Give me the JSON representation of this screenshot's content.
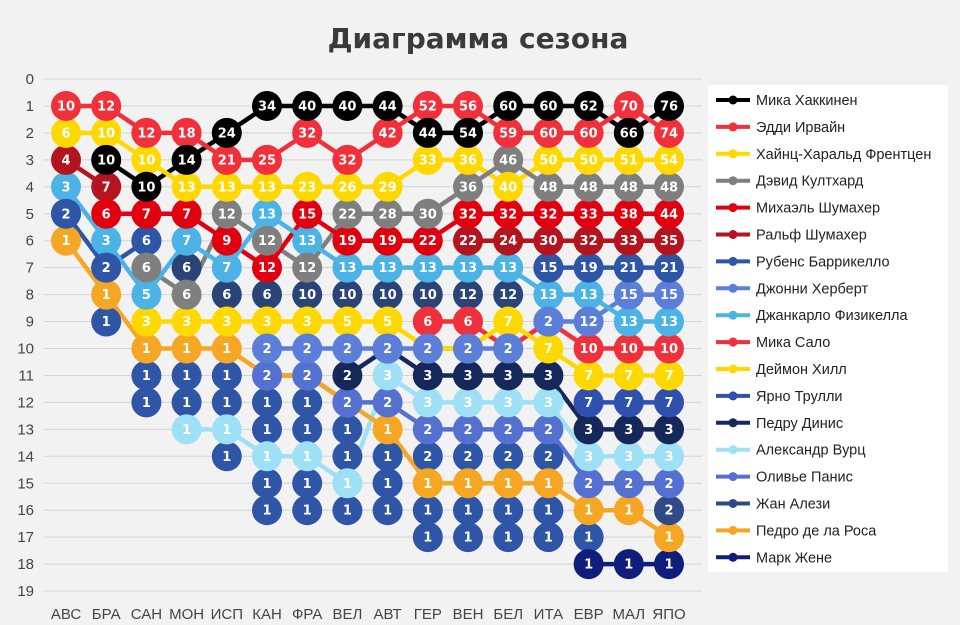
{
  "chart_data": {
    "type": "line",
    "title": "Диаграмма сезона",
    "xlabel": "",
    "ylabel": "",
    "ylim": [
      19,
      0
    ],
    "y_ticks": [
      0,
      1,
      2,
      3,
      4,
      5,
      6,
      7,
      8,
      9,
      10,
      11,
      12,
      13,
      14,
      15,
      16,
      17,
      18,
      19
    ],
    "y_reversed": true,
    "grid": true,
    "legend_position": "right",
    "categories": [
      "АВС",
      "БРА",
      "САН",
      "МОН",
      "ИСП",
      "КАН",
      "ФРА",
      "ВЕЛ",
      "АВТ",
      "ГЕР",
      "ВЕН",
      "БЕЛ",
      "ИТА",
      "ЕВР",
      "МАЛ",
      "ЯПО"
    ],
    "series": [
      {
        "name": "Мика Хаккинен",
        "color": "#000000",
        "positions": [
          null,
          3,
          4,
          3,
          2,
          1,
          1,
          1,
          1,
          2,
          2,
          1,
          1,
          1,
          2,
          1
        ],
        "points": [
          null,
          10,
          10,
          14,
          24,
          34,
          40,
          40,
          44,
          44,
          54,
          60,
          60,
          62,
          66,
          76
        ]
      },
      {
        "name": "Эдди Ирвайн",
        "color": "#f0303a",
        "positions": [
          1,
          1,
          2,
          2,
          3,
          3,
          2,
          3,
          2,
          1,
          1,
          2,
          2,
          2,
          1,
          2
        ],
        "points": [
          10,
          12,
          12,
          18,
          21,
          25,
          32,
          32,
          42,
          52,
          56,
          59,
          60,
          60,
          70,
          74
        ]
      },
      {
        "name": "Хайнц-Харальд Френтцен",
        "color": "#ffd800",
        "positions": [
          2,
          2,
          3,
          4,
          4,
          4,
          4,
          4,
          4,
          3,
          3,
          4,
          3,
          3,
          3,
          3
        ],
        "points": [
          6,
          10,
          10,
          13,
          13,
          13,
          23,
          26,
          29,
          33,
          36,
          40,
          50,
          50,
          51,
          54
        ]
      },
      {
        "name": "Дэвид Култхард",
        "color": "#7f7f7f",
        "positions": [
          null,
          null,
          7,
          8,
          5,
          6,
          7,
          5,
          5,
          5,
          4,
          3,
          4,
          4,
          4,
          4
        ],
        "points": [
          null,
          null,
          6,
          6,
          12,
          12,
          12,
          22,
          28,
          30,
          36,
          46,
          48,
          48,
          48,
          48
        ]
      },
      {
        "name": "Михаэль Шумахер",
        "color": "#e00010",
        "positions": [
          null,
          5,
          5,
          5,
          6,
          7,
          5,
          6,
          6,
          6,
          5,
          5,
          5,
          5,
          5,
          5
        ],
        "points": [
          null,
          6,
          7,
          7,
          9,
          12,
          15,
          19,
          19,
          22,
          32,
          32,
          32,
          33,
          38,
          44
        ]
      },
      {
        "name": "Ральф Шумахер",
        "color": "#b4141e",
        "positions": [
          3,
          4,
          null,
          null,
          null,
          null,
          null,
          null,
          null,
          null,
          6,
          6,
          6,
          6,
          6,
          6
        ],
        "points": [
          4,
          7,
          null,
          null,
          null,
          null,
          null,
          null,
          null,
          null,
          22,
          24,
          30,
          32,
          33,
          35
        ]
      },
      {
        "name": "Рубенс Баррикелло",
        "color": "#2f55a6",
        "positions": [
          5,
          7,
          6,
          null,
          null,
          null,
          null,
          null,
          null,
          null,
          null,
          null,
          7,
          7,
          7,
          7
        ],
        "points": [
          2,
          2,
          6,
          null,
          null,
          null,
          null,
          null,
          null,
          null,
          null,
          null,
          15,
          19,
          21,
          21
        ]
      },
      {
        "name": "Джонни Херберт",
        "color": "#5b7fd9",
        "positions": [
          null,
          null,
          null,
          null,
          null,
          10,
          10,
          10,
          10,
          10,
          10,
          10,
          9,
          9,
          8,
          8
        ],
        "points": [
          null,
          null,
          null,
          null,
          null,
          2,
          2,
          2,
          2,
          2,
          2,
          2,
          2,
          12,
          15,
          15
        ]
      },
      {
        "name": "Джанкарло Физикелла",
        "color": "#4cb3e6",
        "positions": [
          4,
          6,
          8,
          6,
          7,
          5,
          6,
          7,
          7,
          7,
          7,
          7,
          8,
          8,
          9,
          9
        ],
        "points": [
          3,
          3,
          5,
          7,
          7,
          13,
          13,
          13,
          13,
          13,
          13,
          13,
          13,
          13,
          13,
          13
        ]
      },
      {
        "name": "Мика Сало",
        "color": "#f0303a",
        "positions": [
          null,
          null,
          null,
          null,
          null,
          null,
          null,
          null,
          null,
          9,
          9,
          10,
          9,
          10,
          10,
          10
        ],
        "points": [
          null,
          null,
          null,
          null,
          null,
          null,
          null,
          null,
          null,
          6,
          6,
          6,
          10,
          10,
          10,
          10
        ]
      },
      {
        "name": "Деймон Хилл",
        "color": "#ffd800",
        "positions": [
          null,
          null,
          9,
          9,
          9,
          9,
          9,
          9,
          9,
          10,
          10,
          9,
          10,
          11,
          11,
          11
        ],
        "points": [
          null,
          null,
          3,
          3,
          3,
          3,
          3,
          5,
          5,
          5,
          6,
          7,
          7,
          7,
          7,
          7
        ]
      },
      {
        "name": "Ярно Трулли",
        "color": "#3050b0",
        "positions": [
          null,
          null,
          null,
          null,
          null,
          null,
          null,
          null,
          null,
          null,
          null,
          null,
          null,
          12,
          12,
          12
        ],
        "points": [
          null,
          null,
          null,
          null,
          null,
          null,
          null,
          null,
          null,
          null,
          null,
          null,
          null,
          7,
          7,
          7
        ]
      },
      {
        "name": "Педру Динис",
        "color": "#16285a",
        "positions": [
          null,
          null,
          null,
          null,
          null,
          null,
          null,
          11,
          10,
          11,
          11,
          11,
          11,
          13,
          13,
          13
        ],
        "points": [
          null,
          null,
          null,
          null,
          null,
          null,
          null,
          2,
          3,
          3,
          3,
          3,
          3,
          3,
          3,
          3
        ]
      },
      {
        "name": "Александр Вурц",
        "color": "#9ee0f5",
        "positions": [
          null,
          null,
          null,
          13,
          13,
          14,
          14,
          15,
          11,
          12,
          12,
          12,
          12,
          14,
          14,
          14
        ],
        "points": [
          null,
          null,
          null,
          1,
          1,
          1,
          1,
          1,
          3,
          3,
          3,
          3,
          3,
          3,
          3,
          3
        ]
      },
      {
        "name": "Оливье Панис",
        "color": "#5470d0",
        "positions": [
          null,
          null,
          null,
          null,
          null,
          11,
          11,
          12,
          12,
          13,
          13,
          13,
          13,
          15,
          15,
          15
        ],
        "points": [
          null,
          null,
          null,
          null,
          null,
          2,
          2,
          2,
          2,
          2,
          2,
          2,
          2,
          2,
          2,
          2
        ]
      },
      {
        "name": "Жан Алези",
        "color": "#2f4a86",
        "positions": [
          null,
          null,
          null,
          null,
          null,
          null,
          null,
          null,
          null,
          null,
          null,
          null,
          null,
          null,
          null,
          16
        ],
        "points": [
          null,
          null,
          null,
          null,
          null,
          null,
          null,
          null,
          null,
          null,
          null,
          null,
          null,
          null,
          null,
          2
        ]
      },
      {
        "name": "Педро де ла Роса",
        "color": "#f5a623",
        "positions": [
          6,
          8,
          10,
          10,
          10,
          11,
          11,
          12,
          13,
          15,
          15,
          15,
          15,
          16,
          16,
          17
        ],
        "points": [
          1,
          1,
          1,
          1,
          1,
          1,
          1,
          1,
          1,
          1,
          1,
          1,
          1,
          1,
          1,
          1
        ]
      },
      {
        "name": "Марк Жене",
        "color": "#0f1e7a",
        "positions": [
          null,
          null,
          null,
          null,
          null,
          null,
          null,
          null,
          null,
          null,
          null,
          null,
          null,
          18,
          18,
          18
        ],
        "points": [
          null,
          null,
          null,
          null,
          null,
          null,
          null,
          null,
          null,
          null,
          null,
          null,
          null,
          1,
          1,
          1
        ]
      }
    ],
    "extra_marks": [
      {
        "color": "#2f55a6",
        "points": [
          [
            1,
            9,
            1
          ],
          [
            2,
            11,
            1
          ],
          [
            2,
            12,
            1
          ],
          [
            3,
            11,
            1
          ],
          [
            3,
            12,
            1
          ],
          [
            4,
            11,
            1
          ],
          [
            4,
            12,
            1
          ],
          [
            4,
            14,
            1
          ],
          [
            5,
            12,
            1
          ],
          [
            5,
            13,
            1
          ],
          [
            5,
            15,
            1
          ],
          [
            5,
            16,
            1
          ],
          [
            6,
            12,
            1
          ],
          [
            6,
            13,
            1
          ],
          [
            6,
            15,
            1
          ],
          [
            6,
            16,
            1
          ],
          [
            7,
            13,
            1
          ],
          [
            7,
            14,
            1
          ],
          [
            7,
            16,
            1
          ],
          [
            8,
            14,
            1
          ],
          [
            8,
            15,
            1
          ],
          [
            8,
            16,
            1
          ],
          [
            9,
            14,
            2
          ],
          [
            9,
            16,
            1
          ],
          [
            9,
            17,
            1
          ],
          [
            10,
            14,
            2
          ],
          [
            10,
            16,
            1
          ],
          [
            10,
            17,
            1
          ],
          [
            11,
            14,
            2
          ],
          [
            11,
            16,
            1
          ],
          [
            11,
            17,
            1
          ],
          [
            12,
            14,
            2
          ],
          [
            12,
            16,
            1
          ],
          [
            12,
            17,
            1
          ],
          [
            13,
            17,
            1
          ]
        ]
      },
      {
        "color": "#2b4478",
        "points": [
          [
            0,
            5,
            2
          ],
          [
            1,
            7,
            2
          ],
          [
            2,
            6,
            6
          ],
          [
            3,
            7,
            6
          ],
          [
            4,
            8,
            6
          ],
          [
            5,
            8,
            6
          ],
          [
            6,
            8,
            10
          ],
          [
            7,
            8,
            10
          ],
          [
            8,
            8,
            10
          ],
          [
            9,
            8,
            10
          ],
          [
            10,
            8,
            12
          ],
          [
            11,
            8,
            12
          ],
          [
            12,
            7,
            15
          ]
        ]
      }
    ]
  }
}
